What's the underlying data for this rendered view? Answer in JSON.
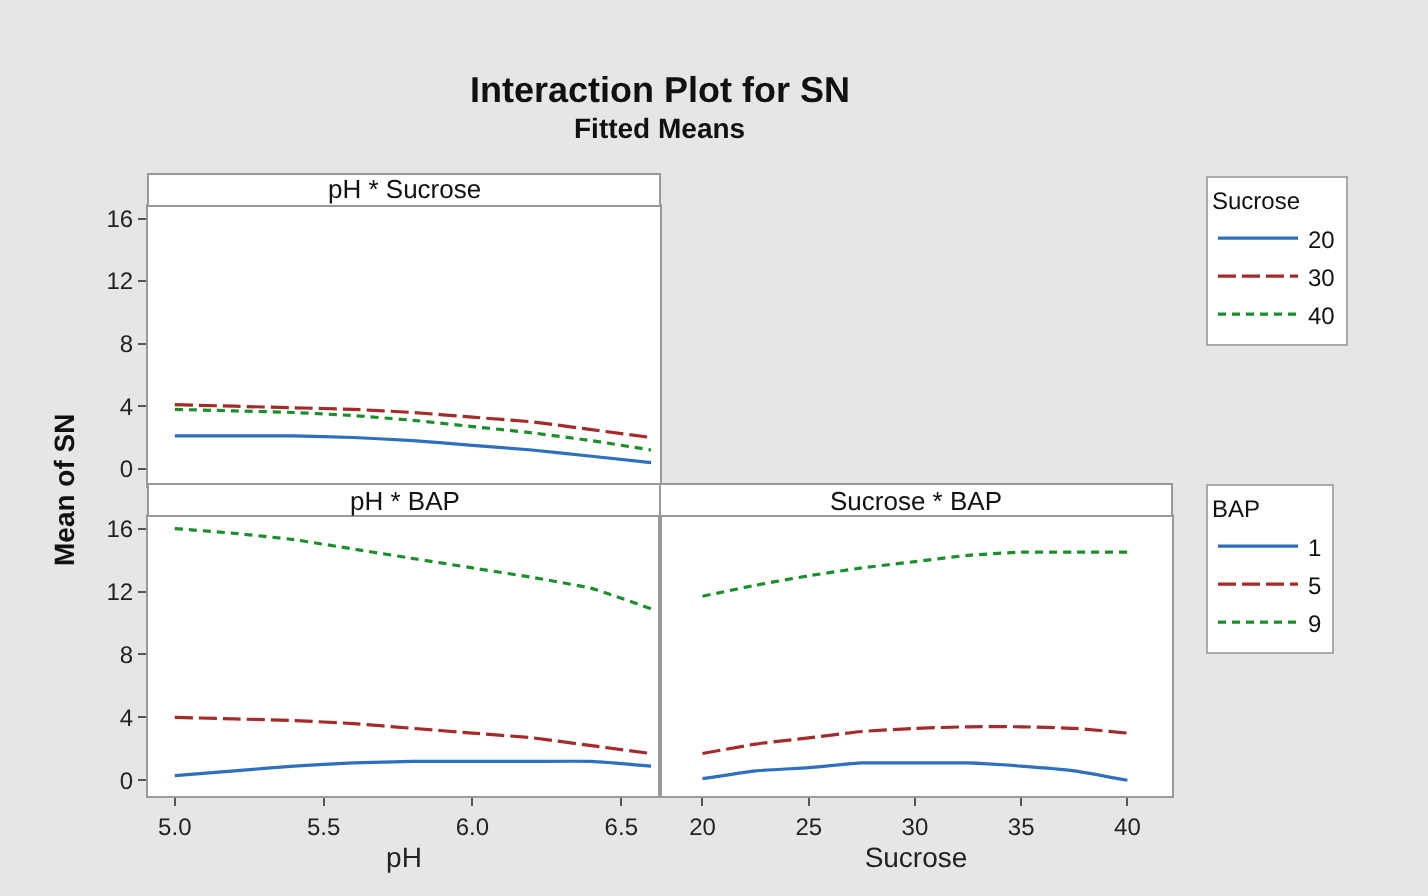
{
  "chart_data": [
    {
      "type": "line",
      "annotations": [
        "Interaction Plot for SN",
        "Fitted Means"
      ],
      "title": "pH * Sucrose",
      "ylabel": "Mean of SN",
      "legend_title": "Sucrose",
      "legend": "right",
      "tick_labels": "y",
      "grid": false,
      "x": [
        5.0,
        5.2,
        5.4,
        5.6,
        5.8,
        6.0,
        6.2,
        6.4,
        6.6
      ],
      "xlim": [
        4.91,
        6.63
      ],
      "ylim": [
        -1.1,
        16.8
      ],
      "yticks": [
        0,
        4,
        8,
        12,
        16
      ],
      "series": [
        {
          "name": "20",
          "color": "#2e6fc0",
          "line_style": "solid",
          "values": [
            2.1,
            2.1,
            2.1,
            2.0,
            1.8,
            1.5,
            1.2,
            0.8,
            0.4
          ]
        },
        {
          "name": "30",
          "color": "#a62a2a",
          "line_style": "dashed",
          "values": [
            4.1,
            4.0,
            3.9,
            3.8,
            3.6,
            3.3,
            3.0,
            2.5,
            2.0
          ]
        },
        {
          "name": "40",
          "color": "#1a8f2a",
          "line_style": "dotted",
          "values": [
            3.8,
            3.7,
            3.6,
            3.4,
            3.1,
            2.7,
            2.3,
            1.8,
            1.2
          ]
        }
      ]
    },
    {
      "type": "line",
      "title": "pH * BAP",
      "xlabel": "pH",
      "legend_title": "BAP",
      "legend": "right",
      "grid": false,
      "x": [
        5.0,
        5.2,
        5.4,
        5.6,
        5.8,
        6.0,
        6.2,
        6.4,
        6.6
      ],
      "xlim": [
        4.91,
        6.63
      ],
      "xticks": [
        {
          "value": 5,
          "label": "5.0"
        },
        5.5,
        {
          "value": 6,
          "label": "6.0"
        },
        6.5
      ],
      "ylim": [
        -1.0,
        16.8
      ],
      "yticks": [
        0,
        4,
        8,
        12,
        16
      ],
      "series": [
        {
          "name": "1",
          "color": "#2e6fc0",
          "line_style": "solid",
          "values": [
            0.3,
            0.6,
            0.9,
            1.1,
            1.2,
            1.2,
            1.2,
            1.2,
            0.9
          ]
        },
        {
          "name": "5",
          "color": "#a62a2a",
          "line_style": "dashed",
          "values": [
            4.0,
            3.9,
            3.8,
            3.6,
            3.3,
            3.0,
            2.7,
            2.2,
            1.7
          ]
        },
        {
          "name": "9",
          "color": "#1a8f2a",
          "line_style": "dotted",
          "values": [
            16.0,
            15.7,
            15.3,
            14.7,
            14.1,
            13.5,
            12.9,
            12.2,
            10.9
          ]
        }
      ]
    },
    {
      "type": "line",
      "title": "Sucrose * BAP",
      "xlabel": "Sucrose",
      "tick_labels": "x",
      "grid": false,
      "x": [
        20,
        22.5,
        25,
        27.5,
        30,
        32.5,
        35,
        37.5,
        40
      ],
      "xlim": [
        18,
        42.1
      ],
      "xticks": [
        20,
        25,
        30,
        35,
        40
      ],
      "ylim": [
        -1.0,
        16.8
      ],
      "series": [
        {
          "color": "#2e6fc0",
          "line_style": "solid",
          "values": [
            0.1,
            0.6,
            0.8,
            1.1,
            1.1,
            1.1,
            0.9,
            0.6,
            0.0
          ]
        },
        {
          "color": "#a62a2a",
          "line_style": "dashed",
          "values": [
            1.7,
            2.3,
            2.7,
            3.1,
            3.3,
            3.4,
            3.4,
            3.3,
            3.0
          ]
        },
        {
          "color": "#1a8f2a",
          "line_style": "dotted",
          "values": [
            11.7,
            12.4,
            13.0,
            13.5,
            13.9,
            14.3,
            14.5,
            14.5,
            14.5
          ]
        }
      ]
    }
  ]
}
